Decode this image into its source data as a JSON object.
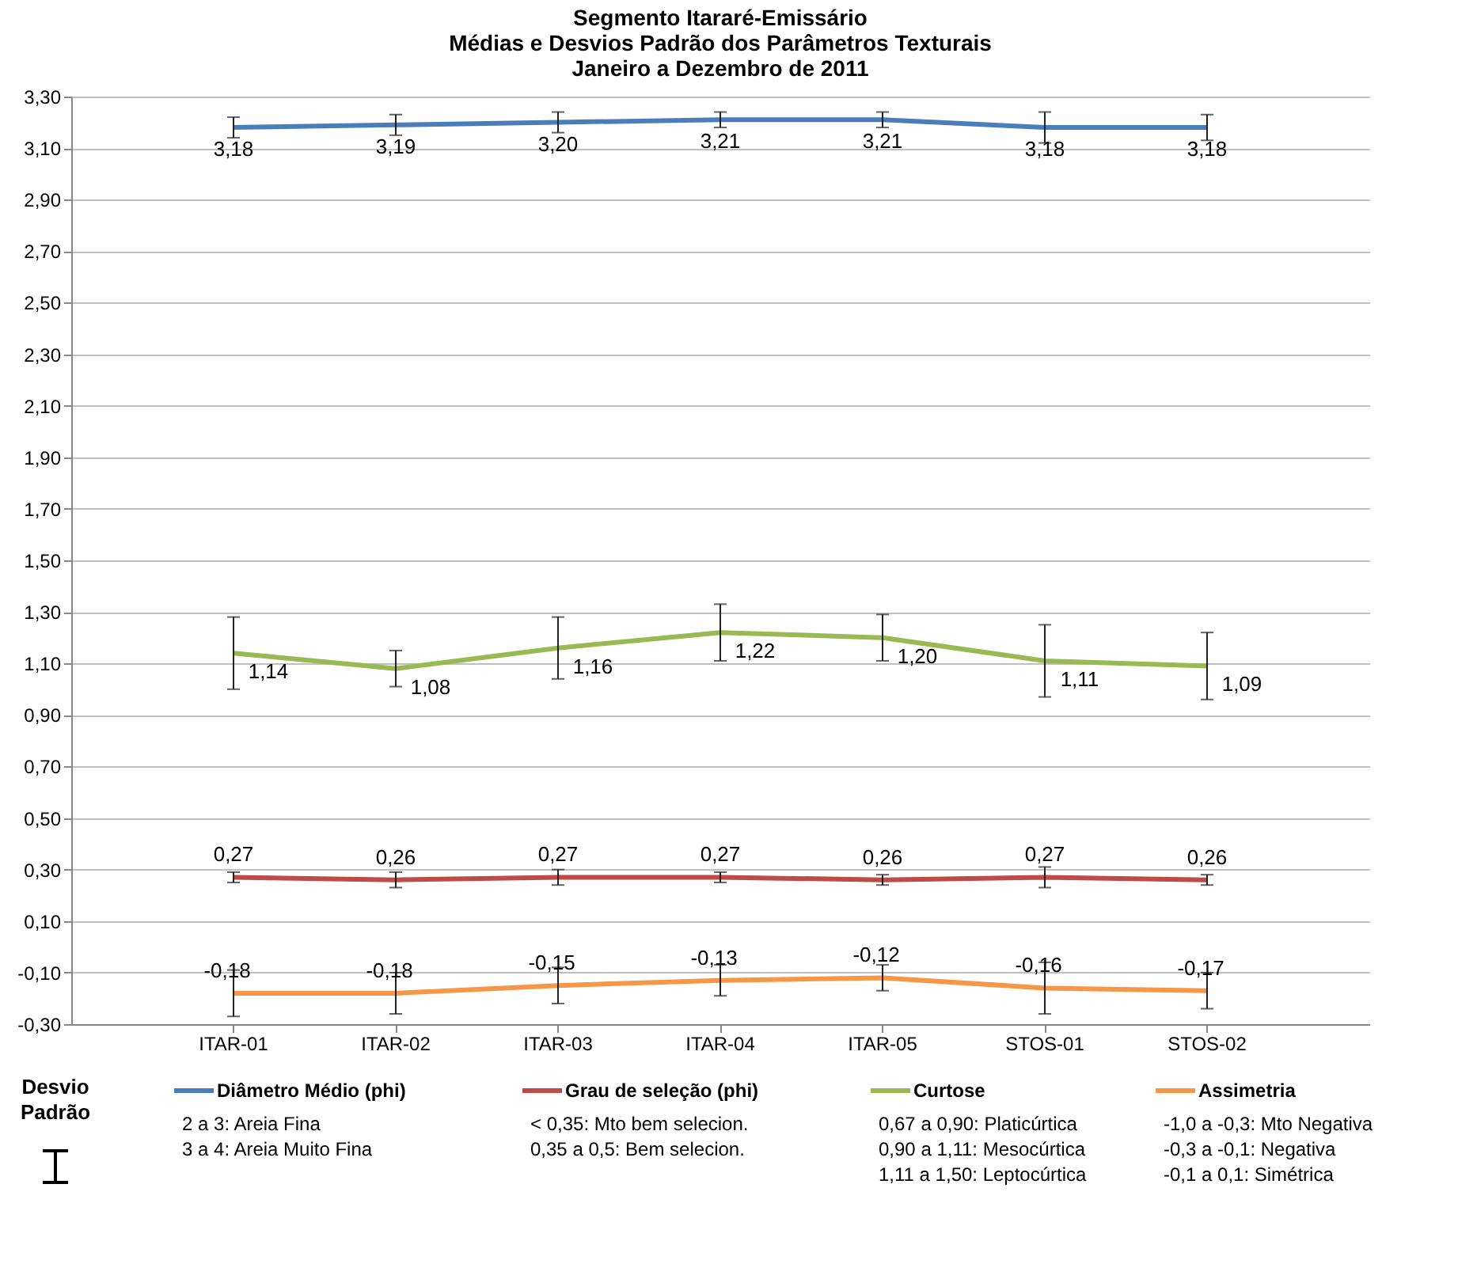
{
  "chart_data": {
    "type": "line",
    "title": [
      "Segmento Itararé-Emissário",
      "Médias e Desvios Padrão dos Parâmetros Texturais",
      "Janeiro a Dezembro de 2011"
    ],
    "categories": [
      "ITAR-01",
      "ITAR-02",
      "ITAR-03",
      "ITAR-04",
      "ITAR-05",
      "STOS-01",
      "STOS-02"
    ],
    "series": [
      {
        "name": "Diâmetro Médio (phi)",
        "color": "#4a7ebb",
        "values": [
          3.18,
          3.19,
          3.2,
          3.21,
          3.21,
          3.18,
          3.18
        ],
        "value_labels": [
          "3,18",
          "3,19",
          "3,20",
          "3,21",
          "3,21",
          "3,18",
          "3,18"
        ],
        "errors": [
          0.04,
          0.04,
          0.04,
          0.03,
          0.03,
          0.06,
          0.05
        ]
      },
      {
        "name": "Grau de seleção (phi)",
        "color": "#be4b48",
        "values": [
          0.27,
          0.26,
          0.27,
          0.27,
          0.26,
          0.27,
          0.26
        ],
        "value_labels": [
          "0,27",
          "0,26",
          "0,27",
          "0,27",
          "0,26",
          "0,27",
          "0,26"
        ],
        "errors": [
          0.02,
          0.03,
          0.03,
          0.02,
          0.02,
          0.04,
          0.02
        ]
      },
      {
        "name": "Curtose",
        "color": "#98b954",
        "values": [
          1.14,
          1.08,
          1.16,
          1.22,
          1.2,
          1.11,
          1.09
        ],
        "value_labels": [
          "1,14",
          "1,08",
          "1,16",
          "1,22",
          "1,20",
          "1,11",
          "1,09"
        ],
        "errors": [
          0.14,
          0.07,
          0.12,
          0.11,
          0.09,
          0.14,
          0.13
        ]
      },
      {
        "name": "Assimetria",
        "color": "#f79646",
        "values": [
          -0.18,
          -0.18,
          -0.15,
          -0.13,
          -0.12,
          -0.16,
          -0.17
        ],
        "value_labels": [
          "-0,18",
          "-0,18",
          "-0,15",
          "-0,13",
          "-0,12",
          "-0,16",
          "-0,17"
        ],
        "errors": [
          0.09,
          0.08,
          0.07,
          0.06,
          0.05,
          0.1,
          0.07
        ]
      }
    ],
    "ylim": [
      -0.3,
      3.3
    ],
    "yticks": [
      {
        "value": -0.3,
        "label": "-0,30"
      },
      {
        "value": -0.1,
        "label": "-0,10"
      },
      {
        "value": 0.1,
        "label": "0,10"
      },
      {
        "value": 0.3,
        "label": "0,30"
      },
      {
        "value": 0.5,
        "label": "0,50"
      },
      {
        "value": 0.7,
        "label": "0,70"
      },
      {
        "value": 0.9,
        "label": "0,90"
      },
      {
        "value": 1.1,
        "label": "1,10"
      },
      {
        "value": 1.3,
        "label": "1,30"
      },
      {
        "value": 1.5,
        "label": "1,50"
      },
      {
        "value": 1.7,
        "label": "1,70"
      },
      {
        "value": 1.9,
        "label": "1,90"
      },
      {
        "value": 2.1,
        "label": "2,10"
      },
      {
        "value": 2.3,
        "label": "2,30"
      },
      {
        "value": 2.5,
        "label": "2,50"
      },
      {
        "value": 2.7,
        "label": "2,70"
      },
      {
        "value": 2.9,
        "label": "2,90"
      },
      {
        "value": 3.1,
        "label": "3,10"
      },
      {
        "value": 3.3,
        "label": "3,30"
      }
    ],
    "grid": "y",
    "legend": "bottom",
    "marker": "none",
    "annotations": [
      "Desvio\nPadrão",
      "2 a 3: Areia Fina\n3 a 4: Areia Muito Fina",
      "< 0,35: Mto bem selecion.\n0,35 a 0,5: Bem  selecion.",
      "0,67 a 0,90: Platicúrtica\n0,90 a 1,11: Mesocúrtica\n1,11 a 1,50: Leptocúrtica",
      "-1,0 a -0,3: Mto Negativa\n-0,3 a -0,1: Negativa\n-0,1 a 0,1:  Simétrica"
    ]
  }
}
